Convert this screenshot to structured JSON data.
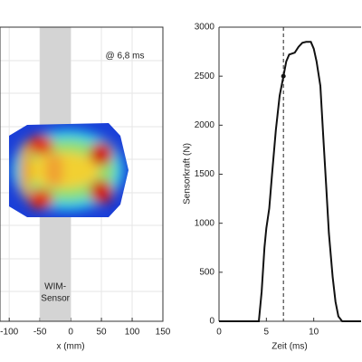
{
  "chart_data": [
    {
      "type": "image",
      "xlabel": "x (mm)",
      "annotation": "@ 6,8 ms",
      "xlim": [
        -115,
        150
      ],
      "xticks": [
        -100,
        -50,
        0,
        50,
        100,
        150
      ],
      "band": [
        -50,
        0
      ],
      "band_label": [
        "WIM-",
        "Sensor"
      ],
      "grid": true
    },
    {
      "type": "line",
      "xlabel": "Zeit (ms)",
      "ylabel": "Sensorkraft (N)",
      "color": "#111111",
      "x": [
        0,
        4.2,
        4.5,
        4.8,
        5,
        5.3,
        5.6,
        6,
        6.4,
        6.8,
        7.1,
        7.4,
        8,
        8.4,
        8.8,
        9.2,
        9.7,
        10,
        10.3,
        10.7,
        11,
        11.3,
        11.6,
        12,
        12.3,
        12.6,
        13,
        15
      ],
      "values": [
        0,
        0,
        300,
        750,
        950,
        1150,
        1500,
        1950,
        2300,
        2500,
        2650,
        2720,
        2740,
        2800,
        2840,
        2850,
        2850,
        2780,
        2650,
        2400,
        1900,
        1400,
        900,
        450,
        200,
        50,
        0,
        0
      ],
      "vline": 6.8,
      "marker": {
        "x": 6.8,
        "y": 2500
      },
      "xlim": [
        0,
        15
      ],
      "xticks": [
        0,
        5,
        10
      ],
      "ylim": [
        0,
        3000
      ],
      "yticks": [
        0,
        500,
        1000,
        1500,
        2000,
        2500,
        3000
      ],
      "grid": false
    }
  ]
}
